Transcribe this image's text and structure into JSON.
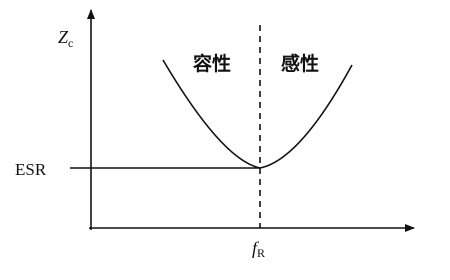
{
  "axes": {
    "y_label": {
      "main": "Z",
      "sub": "c"
    },
    "x_marker": {
      "main": "f",
      "sub": "R"
    }
  },
  "regions": [
    "容性",
    "感性"
  ],
  "level_label": "ESR"
}
